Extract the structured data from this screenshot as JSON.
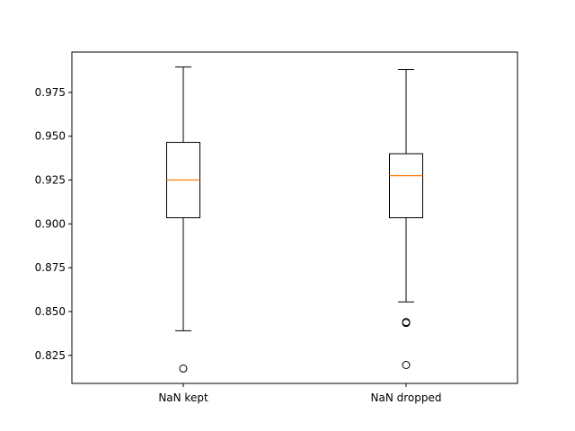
{
  "chart_data": {
    "type": "box",
    "title": "",
    "xlabel": "",
    "ylabel": "",
    "ylim": [
      0.809,
      0.998
    ],
    "yticks": [
      {
        "value": 0.825,
        "label": "0.825"
      },
      {
        "value": 0.85,
        "label": "0.850"
      },
      {
        "value": 0.875,
        "label": "0.875"
      },
      {
        "value": 0.9,
        "label": "0.900"
      },
      {
        "value": 0.925,
        "label": "0.925"
      },
      {
        "value": 0.95,
        "label": "0.950"
      },
      {
        "value": 0.975,
        "label": "0.975"
      }
    ],
    "grid": false,
    "categories": [
      "NaN kept",
      "NaN dropped"
    ],
    "boxes": [
      {
        "category": "NaN kept",
        "whisker_low": 0.839,
        "q1": 0.9035,
        "median": 0.925,
        "q3": 0.9465,
        "whisker_high": 0.9895,
        "outliers": [
          0.8175
        ]
      },
      {
        "category": "NaN dropped",
        "whisker_low": 0.8555,
        "q1": 0.9035,
        "median": 0.9275,
        "q3": 0.94,
        "whisker_high": 0.988,
        "outliers": [
          0.8435,
          0.844,
          0.8195
        ]
      }
    ],
    "colors": {
      "box": "#000000",
      "median": "#ff7f0e",
      "outlier": "#000000"
    }
  }
}
